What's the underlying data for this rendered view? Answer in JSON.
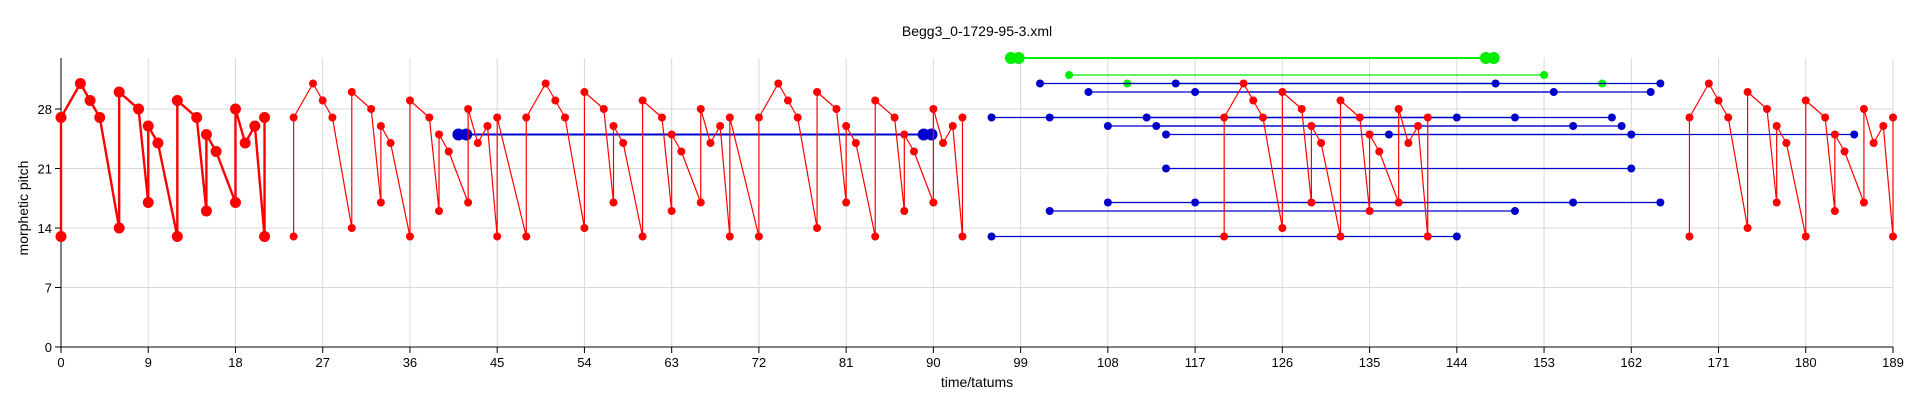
{
  "chart_data": {
    "type": "line",
    "title": "Begg3_0-1729-95-3.xml",
    "xlabel": "time/tatums",
    "ylabel": "morphetic pitch",
    "xlim": [
      0,
      189
    ],
    "ylim": [
      0,
      34
    ],
    "xticks": [
      0,
      9,
      18,
      27,
      36,
      45,
      54,
      63,
      72,
      81,
      90,
      99,
      108,
      117,
      126,
      135,
      144,
      153,
      162,
      171,
      180,
      189
    ],
    "yticks": [
      0,
      7,
      14,
      21,
      28
    ],
    "grid": true,
    "series": [
      {
        "color": "#ff0000",
        "style": "thick",
        "points": [
          [
            0,
            13
          ],
          [
            0,
            27
          ],
          [
            2,
            31
          ],
          [
            3,
            29
          ],
          [
            4,
            27
          ],
          [
            6,
            14
          ],
          [
            6,
            30
          ],
          [
            8,
            28
          ],
          [
            9,
            17
          ],
          [
            9,
            26
          ],
          [
            10,
            24
          ],
          [
            12,
            13
          ],
          [
            12,
            29
          ],
          [
            14,
            27
          ],
          [
            15,
            16
          ],
          [
            15,
            25
          ],
          [
            16,
            23
          ],
          [
            18,
            17
          ],
          [
            18,
            28
          ],
          [
            19,
            24
          ],
          [
            20,
            26
          ],
          [
            21,
            13
          ],
          [
            21,
            27
          ]
        ]
      },
      {
        "color": "#ff0000",
        "style": "thin",
        "points": [
          [
            24,
            13
          ],
          [
            24,
            27
          ],
          [
            26,
            31
          ],
          [
            27,
            29
          ],
          [
            28,
            27
          ],
          [
            30,
            14
          ],
          [
            30,
            30
          ],
          [
            32,
            28
          ],
          [
            33,
            17
          ],
          [
            33,
            26
          ],
          [
            34,
            24
          ],
          [
            36,
            13
          ],
          [
            36,
            29
          ],
          [
            38,
            27
          ],
          [
            39,
            16
          ],
          [
            39,
            25
          ],
          [
            40,
            23
          ],
          [
            42,
            17
          ],
          [
            42,
            28
          ],
          [
            43,
            24
          ],
          [
            44,
            26
          ],
          [
            45,
            13
          ],
          [
            45,
            27
          ],
          [
            48,
            13
          ],
          [
            48,
            27
          ],
          [
            50,
            31
          ],
          [
            51,
            29
          ],
          [
            52,
            27
          ],
          [
            54,
            14
          ],
          [
            54,
            30
          ],
          [
            56,
            28
          ],
          [
            57,
            17
          ],
          [
            57,
            26
          ],
          [
            58,
            24
          ],
          [
            60,
            13
          ],
          [
            60,
            29
          ],
          [
            62,
            27
          ],
          [
            63,
            16
          ],
          [
            63,
            25
          ],
          [
            64,
            23
          ],
          [
            66,
            17
          ],
          [
            66,
            28
          ],
          [
            67,
            24
          ],
          [
            68,
            26
          ],
          [
            69,
            13
          ],
          [
            69,
            27
          ],
          [
            72,
            13
          ],
          [
            72,
            27
          ],
          [
            74,
            31
          ],
          [
            75,
            29
          ],
          [
            76,
            27
          ],
          [
            78,
            14
          ],
          [
            78,
            30
          ],
          [
            80,
            28
          ],
          [
            81,
            17
          ],
          [
            81,
            26
          ],
          [
            82,
            24
          ],
          [
            84,
            13
          ],
          [
            84,
            29
          ],
          [
            86,
            27
          ],
          [
            87,
            16
          ],
          [
            87,
            25
          ],
          [
            88,
            23
          ],
          [
            90,
            17
          ],
          [
            90,
            28
          ],
          [
            91,
            24
          ],
          [
            92,
            26
          ],
          [
            93,
            13
          ],
          [
            93,
            27
          ]
        ]
      },
      {
        "color": "#ff0000",
        "style": "thin",
        "points": [
          [
            120,
            13
          ],
          [
            120,
            27
          ],
          [
            122,
            31
          ],
          [
            123,
            29
          ],
          [
            124,
            27
          ],
          [
            126,
            14
          ],
          [
            126,
            30
          ],
          [
            128,
            28
          ],
          [
            129,
            17
          ],
          [
            129,
            26
          ],
          [
            130,
            24
          ],
          [
            132,
            13
          ],
          [
            132,
            29
          ],
          [
            134,
            27
          ],
          [
            135,
            16
          ],
          [
            135,
            25
          ],
          [
            136,
            23
          ],
          [
            138,
            17
          ],
          [
            138,
            28
          ],
          [
            139,
            24
          ],
          [
            140,
            26
          ],
          [
            141,
            13
          ],
          [
            141,
            27
          ]
        ]
      },
      {
        "color": "#ff0000",
        "style": "thin",
        "points": [
          [
            168,
            13
          ],
          [
            168,
            27
          ],
          [
            170,
            31
          ],
          [
            171,
            29
          ],
          [
            172,
            27
          ],
          [
            174,
            14
          ],
          [
            174,
            30
          ],
          [
            176,
            28
          ],
          [
            177,
            17
          ],
          [
            177,
            26
          ],
          [
            178,
            24
          ],
          [
            180,
            13
          ],
          [
            180,
            29
          ],
          [
            182,
            27
          ],
          [
            183,
            16
          ],
          [
            183,
            25
          ],
          [
            184,
            23
          ],
          [
            186,
            17
          ],
          [
            186,
            28
          ],
          [
            187,
            24
          ],
          [
            188,
            26
          ],
          [
            189,
            13
          ],
          [
            189,
            27
          ]
        ]
      }
    ],
    "segments": [
      {
        "color": "#00ee00",
        "x": [
          98,
          147
        ],
        "y": 34,
        "big": true
      },
      {
        "color": "#00ee00",
        "x": [
          104,
          153
        ],
        "y": 32,
        "big": false
      },
      {
        "color": "#00ee00",
        "x": [
          110,
          159
        ],
        "y": 31,
        "big": false
      },
      {
        "color": "#0000cc",
        "x": [
          41,
          89
        ],
        "y": 25,
        "big": true
      },
      {
        "color": "#0000cc",
        "x": [
          101,
          148
        ],
        "y": 31,
        "big": false
      },
      {
        "color": "#0000cc",
        "x": [
          115,
          165
        ],
        "y": 31,
        "big": false
      },
      {
        "color": "#0000cc",
        "x": [
          106,
          154
        ],
        "y": 30,
        "big": false
      },
      {
        "color": "#0000cc",
        "x": [
          117,
          164
        ],
        "y": 30,
        "big": false
      },
      {
        "color": "#0000cc",
        "x": [
          96,
          144
        ],
        "y": 27,
        "big": false
      },
      {
        "color": "#0000cc",
        "x": [
          102,
          150
        ],
        "y": 27,
        "big": false
      },
      {
        "color": "#0000cc",
        "x": [
          112,
          160
        ],
        "y": 27,
        "big": false
      },
      {
        "color": "#0000cc",
        "x": [
          108,
          156
        ],
        "y": 26,
        "big": false
      },
      {
        "color": "#0000cc",
        "x": [
          113,
          161
        ],
        "y": 26,
        "big": false
      },
      {
        "color": "#0000cc",
        "x": [
          114,
          162
        ],
        "y": 25,
        "big": false
      },
      {
        "color": "#0000cc",
        "x": [
          137,
          185
        ],
        "y": 25,
        "big": false
      },
      {
        "color": "#0000cc",
        "x": [
          114,
          162
        ],
        "y": 21,
        "big": false
      },
      {
        "color": "#0000cc",
        "x": [
          108,
          156
        ],
        "y": 17,
        "big": false
      },
      {
        "color": "#0000cc",
        "x": [
          117,
          165
        ],
        "y": 17,
        "big": false
      },
      {
        "color": "#0000cc",
        "x": [
          102,
          150
        ],
        "y": 16,
        "big": false
      },
      {
        "color": "#0000cc",
        "x": [
          96,
          144
        ],
        "y": 13,
        "big": false
      }
    ]
  }
}
